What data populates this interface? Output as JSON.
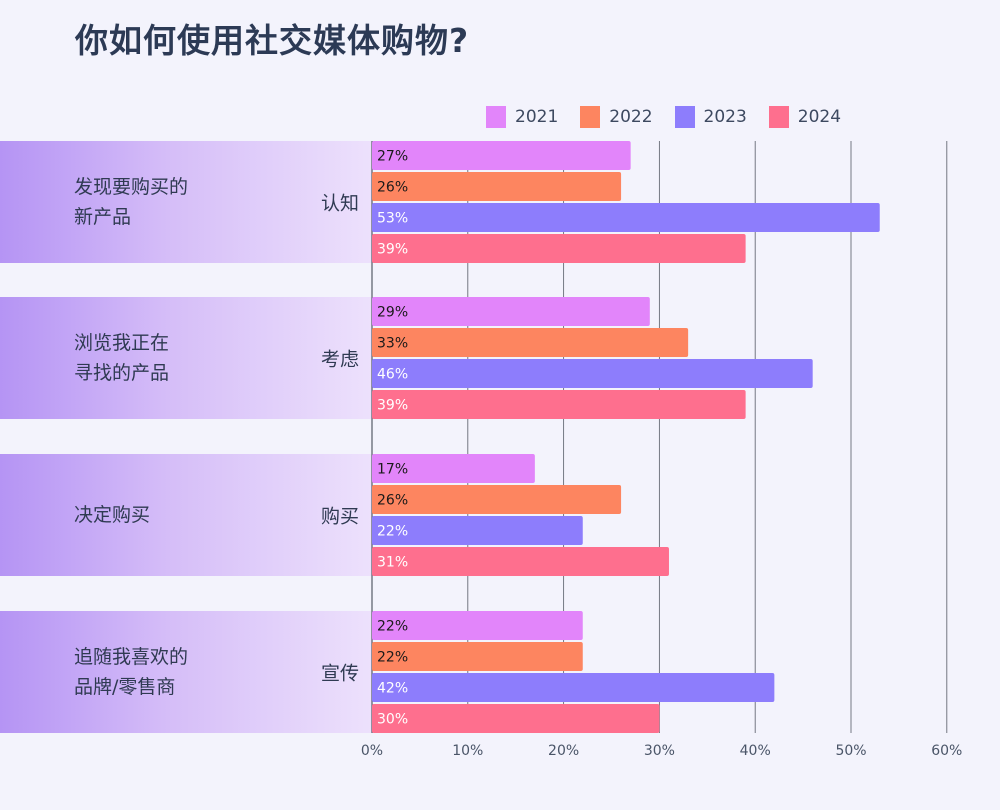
{
  "chart_data": {
    "type": "bar",
    "orientation": "horizontal",
    "title": "你如何使用社交媒体购物?",
    "categories": [
      {
        "label": "发现要购买的新产品",
        "label_lines": [
          "发现要购买的",
          "新产品"
        ],
        "stage": "认知"
      },
      {
        "label": "浏览我正在寻找的产品",
        "label_lines": [
          "浏览我正在",
          "寻找的产品"
        ],
        "stage": "考虑"
      },
      {
        "label": "决定购买",
        "label_lines": [
          "决定购买"
        ],
        "stage": "购买"
      },
      {
        "label": "追随我喜欢的品牌/零售商",
        "label_lines": [
          "追随我喜欢的",
          "品牌/零售商"
        ],
        "stage": "宣传"
      }
    ],
    "series": [
      {
        "name": "2021",
        "color": "#e285fa",
        "label_color": "#1a1a1a",
        "values": [
          27,
          29,
          17,
          22
        ]
      },
      {
        "name": "2022",
        "color": "#fd8560",
        "label_color": "#1a1a1a",
        "values": [
          26,
          33,
          26,
          22
        ]
      },
      {
        "name": "2023",
        "color": "#8d7dfc",
        "label_color": "#ffffff",
        "values": [
          53,
          46,
          22,
          42
        ]
      },
      {
        "name": "2024",
        "color": "#fe6f8e",
        "label_color": "#ffffff",
        "values": [
          39,
          39,
          31,
          30
        ]
      }
    ],
    "value_suffix": "%",
    "xlim": [
      0,
      60
    ],
    "xticks": [
      "0%",
      "10%",
      "20%",
      "30%",
      "40%",
      "50%",
      "60%"
    ],
    "grid": true,
    "legend_position": "top"
  }
}
